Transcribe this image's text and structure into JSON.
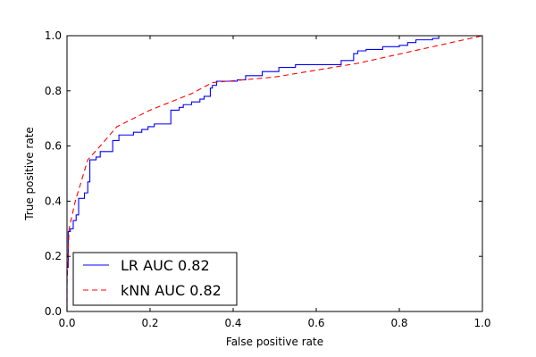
{
  "chart_data": {
    "type": "line",
    "title": "",
    "xlabel": "False positive rate",
    "ylabel": "True positive rate",
    "xlim": [
      0.0,
      1.0
    ],
    "ylim": [
      0.0,
      1.0
    ],
    "xticks": [
      0.0,
      0.2,
      0.4,
      0.6,
      0.8,
      1.0
    ],
    "yticks": [
      0.0,
      0.2,
      0.4,
      0.6,
      0.8,
      1.0
    ],
    "xtick_labels": [
      "0.0",
      "0.2",
      "0.4",
      "0.6",
      "0.8",
      "1.0"
    ],
    "ytick_labels": [
      "0.0",
      "0.2",
      "0.4",
      "0.6",
      "0.8",
      "1.0"
    ],
    "grid": false,
    "legend_position": "bottom-left",
    "series": [
      {
        "name": "LR AUC 0.82",
        "color": "#0000ff",
        "style": "solid",
        "step": true,
        "points": [
          [
            0.0,
            0.0
          ],
          [
            0.0,
            0.16
          ],
          [
            0.003,
            0.16
          ],
          [
            0.003,
            0.29
          ],
          [
            0.008,
            0.29
          ],
          [
            0.008,
            0.3
          ],
          [
            0.015,
            0.3
          ],
          [
            0.015,
            0.33
          ],
          [
            0.022,
            0.33
          ],
          [
            0.022,
            0.35
          ],
          [
            0.028,
            0.35
          ],
          [
            0.028,
            0.41
          ],
          [
            0.042,
            0.41
          ],
          [
            0.042,
            0.43
          ],
          [
            0.05,
            0.43
          ],
          [
            0.05,
            0.47
          ],
          [
            0.055,
            0.47
          ],
          [
            0.055,
            0.55
          ],
          [
            0.07,
            0.55
          ],
          [
            0.07,
            0.56
          ],
          [
            0.08,
            0.56
          ],
          [
            0.08,
            0.58
          ],
          [
            0.11,
            0.58
          ],
          [
            0.11,
            0.62
          ],
          [
            0.125,
            0.62
          ],
          [
            0.125,
            0.64
          ],
          [
            0.16,
            0.64
          ],
          [
            0.16,
            0.65
          ],
          [
            0.18,
            0.65
          ],
          [
            0.18,
            0.66
          ],
          [
            0.195,
            0.66
          ],
          [
            0.195,
            0.67
          ],
          [
            0.21,
            0.67
          ],
          [
            0.21,
            0.68
          ],
          [
            0.25,
            0.68
          ],
          [
            0.25,
            0.73
          ],
          [
            0.27,
            0.73
          ],
          [
            0.27,
            0.74
          ],
          [
            0.28,
            0.74
          ],
          [
            0.28,
            0.75
          ],
          [
            0.3,
            0.75
          ],
          [
            0.3,
            0.76
          ],
          [
            0.32,
            0.76
          ],
          [
            0.32,
            0.77
          ],
          [
            0.33,
            0.77
          ],
          [
            0.33,
            0.78
          ],
          [
            0.345,
            0.78
          ],
          [
            0.345,
            0.81
          ],
          [
            0.35,
            0.81
          ],
          [
            0.35,
            0.82
          ],
          [
            0.36,
            0.82
          ],
          [
            0.36,
            0.835
          ],
          [
            0.41,
            0.835
          ],
          [
            0.41,
            0.84
          ],
          [
            0.43,
            0.84
          ],
          [
            0.43,
            0.855
          ],
          [
            0.47,
            0.855
          ],
          [
            0.47,
            0.87
          ],
          [
            0.51,
            0.87
          ],
          [
            0.51,
            0.885
          ],
          [
            0.55,
            0.885
          ],
          [
            0.55,
            0.895
          ],
          [
            0.66,
            0.895
          ],
          [
            0.66,
            0.91
          ],
          [
            0.69,
            0.91
          ],
          [
            0.69,
            0.935
          ],
          [
            0.7,
            0.935
          ],
          [
            0.7,
            0.945
          ],
          [
            0.72,
            0.945
          ],
          [
            0.72,
            0.95
          ],
          [
            0.76,
            0.95
          ],
          [
            0.76,
            0.96
          ],
          [
            0.8,
            0.96
          ],
          [
            0.8,
            0.965
          ],
          [
            0.82,
            0.965
          ],
          [
            0.82,
            0.975
          ],
          [
            0.84,
            0.975
          ],
          [
            0.84,
            0.985
          ],
          [
            0.88,
            0.985
          ],
          [
            0.88,
            0.99
          ],
          [
            0.895,
            0.99
          ],
          [
            0.895,
            1.0
          ],
          [
            1.0,
            1.0
          ]
        ]
      },
      {
        "name": "kNN AUC 0.82",
        "color": "#ff0000",
        "style": "dashed",
        "step": false,
        "points": [
          [
            0.0,
            0.0
          ],
          [
            0.0,
            0.1
          ],
          [
            0.005,
            0.3
          ],
          [
            0.02,
            0.4
          ],
          [
            0.05,
            0.55
          ],
          [
            0.08,
            0.6
          ],
          [
            0.12,
            0.67
          ],
          [
            0.2,
            0.73
          ],
          [
            0.3,
            0.79
          ],
          [
            0.35,
            0.83
          ],
          [
            0.5,
            0.85
          ],
          [
            0.7,
            0.9
          ],
          [
            1.0,
            1.0
          ]
        ]
      }
    ]
  }
}
